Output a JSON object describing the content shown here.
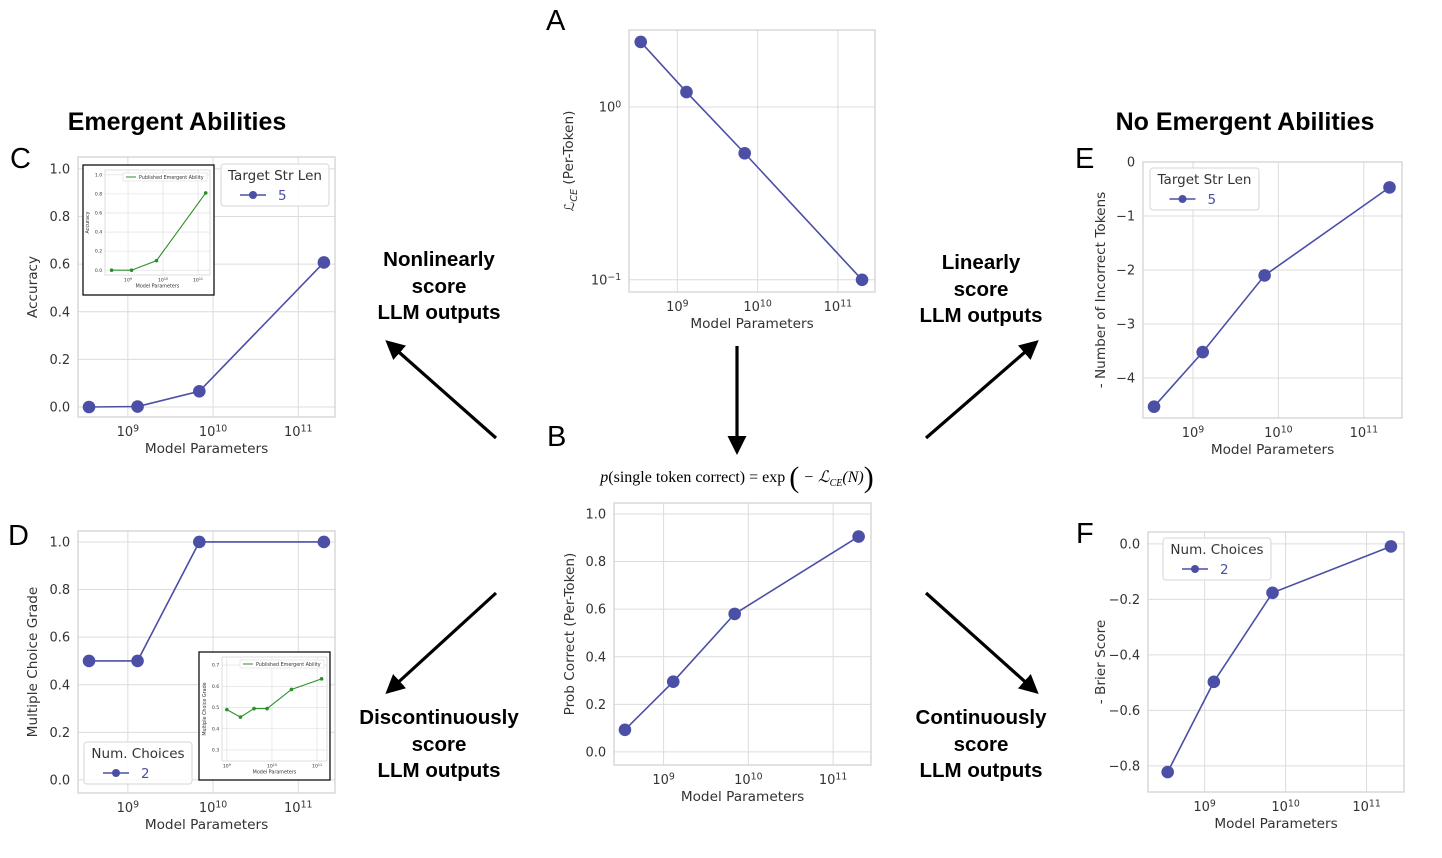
{
  "headings": {
    "left": "Emergent Abilities",
    "right": "No Emergent Abilities"
  },
  "panel_letters": {
    "A": "A",
    "B": "B",
    "C": "C",
    "D": "D",
    "E": "E",
    "F": "F"
  },
  "arrow_labels": {
    "nonlinear": [
      "Nonlinearly",
      "score",
      "LLM outputs"
    ],
    "linear": [
      "Linearly",
      "score",
      "LLM outputs"
    ],
    "discontinuous": [
      "Discontinuously",
      "score",
      "LLM outputs"
    ],
    "continuous": [
      "Continuously",
      "score",
      "LLM outputs"
    ]
  },
  "formula": {
    "p": "p",
    "lhs": "(single token correct) = exp",
    "open": "(",
    "minus": " − ℒ",
    "sub": "CE",
    "tail": "(N)",
    "close": ")"
  },
  "colors": {
    "main": "#4b4fa5",
    "published": "#2b8f2b",
    "grid": "#dcdcdc",
    "spine": "#cfcfcf"
  },
  "chart_data": [
    {
      "panel": "A",
      "type": "line",
      "xlabel": "Model Parameters",
      "ylabel": "ℒ_CE (Per-Token)",
      "xscale": "log",
      "yscale": "log",
      "xlim": [
        250000000.0,
        290000000000.0
      ],
      "ylim": [
        0.085,
        2.79
      ],
      "grid": true,
      "xticks": [
        1000000000.0,
        10000000000.0,
        100000000000.0
      ],
      "xticklabels": [
        "10^9",
        "10^10",
        "10^11"
      ],
      "yticks": [
        1,
        0.1
      ],
      "yticklabels": [
        "10^0",
        "10^-1"
      ],
      "x": [
        350000000.0,
        1300000000.0,
        6900000000.0,
        200000000000.0
      ],
      "y": [
        2.38,
        1.22,
        0.54,
        0.1
      ]
    },
    {
      "panel": "B",
      "type": "line",
      "xlabel": "Model Parameters",
      "ylabel": "Prob Correct (Per-Token)",
      "xscale": "log",
      "yscale": "linear",
      "xlim": [
        260000000.0,
        280000000000.0
      ],
      "ylim": [
        -0.055,
        1.046
      ],
      "grid": true,
      "xticks": [
        1000000000.0,
        10000000000.0,
        100000000000.0
      ],
      "xticklabels": [
        "10^9",
        "10^10",
        "10^11"
      ],
      "yticks": [
        0,
        0.2,
        0.4,
        0.6,
        0.8,
        1.0
      ],
      "yticklabels": [
        "0.0",
        "0.2",
        "0.4",
        "0.6",
        "0.8",
        "1.0"
      ],
      "x": [
        350000000.0,
        1300000000.0,
        6900000000.0,
        200000000000.0
      ],
      "y": [
        0.093,
        0.295,
        0.58,
        0.905
      ]
    },
    {
      "panel": "C",
      "type": "line",
      "xlabel": "Model Parameters",
      "ylabel": "Accuracy",
      "xscale": "log",
      "yscale": "linear",
      "xlim": [
        260000000.0,
        270000000000.0
      ],
      "ylim": [
        -0.042,
        1.05
      ],
      "grid": true,
      "xticks": [
        1000000000.0,
        10000000000.0,
        100000000000.0
      ],
      "xticklabels": [
        "10^9",
        "10^10",
        "10^11"
      ],
      "yticks": [
        0,
        0.2,
        0.4,
        0.6,
        0.8,
        1.0
      ],
      "yticklabels": [
        "0.0",
        "0.2",
        "0.4",
        "0.6",
        "0.8",
        "1.0"
      ],
      "x": [
        350000000.0,
        1300000000.0,
        6900000000.0,
        200000000000.0
      ],
      "y": [
        0.0,
        0.002,
        0.066,
        0.607
      ],
      "legend": {
        "title": "Target Str Len",
        "entries": [
          "5"
        ],
        "placement": "top-right"
      },
      "inset": {
        "type": "line",
        "xlabel": "Model Parameters",
        "ylabel": "Accuracy",
        "xscale": "log",
        "xlim": [
          220000000.0,
          220000000000.0
        ],
        "ylim": [
          -0.05,
          1.05
        ],
        "xticks": [
          1000000000.0,
          10000000000.0,
          100000000000.0
        ],
        "xticklabels": [
          "10^9",
          "10^10",
          "10^11"
        ],
        "yticks": [
          0,
          0.2,
          0.4,
          0.6,
          0.8,
          1.0
        ],
        "yticklabels": [
          "0.0",
          "0.2",
          "0.4",
          "0.6",
          "0.8",
          "1.0"
        ],
        "x": [
          340000000.0,
          1260000000.0,
          6500000000.0,
          166000000000.0
        ],
        "y": [
          0.0,
          0.0,
          0.1,
          0.81
        ],
        "legend": {
          "entries": [
            "Published Emergent Ability"
          ],
          "placement": "top-right"
        }
      }
    },
    {
      "panel": "D",
      "type": "line",
      "xlabel": "Model Parameters",
      "ylabel": "Multiple Choice Grade",
      "xscale": "log",
      "yscale": "linear",
      "xlim": [
        260000000.0,
        270000000000.0
      ],
      "ylim": [
        -0.055,
        1.046
      ],
      "grid": true,
      "xticks": [
        1000000000.0,
        10000000000.0,
        100000000000.0
      ],
      "xticklabels": [
        "10^9",
        "10^10",
        "10^11"
      ],
      "yticks": [
        0,
        0.2,
        0.4,
        0.6,
        0.8,
        1.0
      ],
      "yticklabels": [
        "0.0",
        "0.2",
        "0.4",
        "0.6",
        "0.8",
        "1.0"
      ],
      "x": [
        350000000.0,
        1300000000.0,
        6900000000.0,
        200000000000.0
      ],
      "y": [
        0.5,
        0.5,
        1.0,
        1.0
      ],
      "legend": {
        "title": "Num. Choices",
        "entries": [
          "2"
        ],
        "placement": "bottom-left"
      },
      "inset": {
        "type": "line",
        "xlabel": "Model Parameters",
        "ylabel": "Multiple Choice Grade",
        "xscale": "log",
        "xlim": [
          780000000.0,
          166000000000.0
        ],
        "ylim": [
          0.248,
          0.738
        ],
        "xticks": [
          1000000000.0,
          10000000000.0,
          100000000000.0
        ],
        "xticklabels": [
          "10^9",
          "10^10",
          "10^11"
        ],
        "yticks": [
          0.3,
          0.4,
          0.5,
          0.6,
          0.7
        ],
        "yticklabels": [
          "0.3",
          "0.4",
          "0.5",
          "0.6",
          "0.7"
        ],
        "x": [
          1000000000.0,
          2000000000.0,
          4000000000.0,
          7800000000.0,
          27000000000.0,
          126000000000.0
        ],
        "y": [
          0.49,
          0.455,
          0.495,
          0.495,
          0.585,
          0.635
        ],
        "legend": {
          "entries": [
            "Published Emergent Ability"
          ],
          "placement": "top-right"
        }
      }
    },
    {
      "panel": "E",
      "type": "line",
      "xlabel": "Model Parameters",
      "ylabel": "- Number of Incorrect Tokens",
      "xscale": "log",
      "yscale": "linear",
      "xlim": [
        260000000.0,
        280000000000.0
      ],
      "ylim": [
        -4.74,
        0
      ],
      "grid": true,
      "xticks": [
        1000000000.0,
        10000000000.0,
        100000000000.0
      ],
      "xticklabels": [
        "10^9",
        "10^10",
        "10^11"
      ],
      "yticks": [
        0,
        -1,
        -2,
        -3,
        -4
      ],
      "yticklabels": [
        "0",
        "−1",
        "−2",
        "−3",
        "−4"
      ],
      "x": [
        350000000.0,
        1300000000.0,
        6900000000.0,
        200000000000.0
      ],
      "y": [
        -4.53,
        -3.52,
        -2.1,
        -0.47
      ],
      "legend": {
        "title": "Target Str Len",
        "entries": [
          "5"
        ],
        "placement": "top-left"
      }
    },
    {
      "panel": "F",
      "type": "line",
      "xlabel": "Model Parameters",
      "ylabel": "- Brier Score",
      "xscale": "log",
      "yscale": "linear",
      "xlim": [
        200000000.0,
        290000000000.0
      ],
      "ylim": [
        -0.894,
        0.043
      ],
      "grid": true,
      "xticks": [
        1000000000.0,
        10000000000.0,
        100000000000.0
      ],
      "xticklabels": [
        "10^9",
        "10^10",
        "10^11"
      ],
      "yticks": [
        0,
        -0.2,
        -0.4,
        -0.6,
        -0.8
      ],
      "yticklabels": [
        "0.0",
        "−0.2",
        "−0.4",
        "−0.6",
        "−0.8"
      ],
      "x": [
        350000000.0,
        1300000000.0,
        6900000000.0,
        200000000000.0
      ],
      "y": [
        -0.822,
        -0.497,
        -0.176,
        -0.009
      ],
      "legend": {
        "title": "Num. Choices",
        "entries": [
          "2"
        ],
        "placement": "top-left"
      }
    }
  ]
}
